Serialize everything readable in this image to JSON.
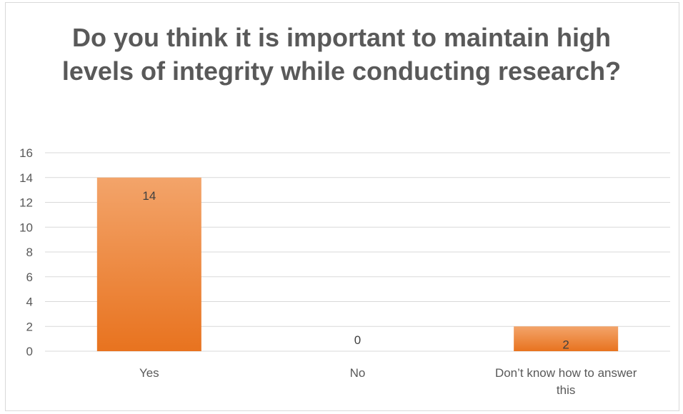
{
  "chart_data": {
    "type": "bar",
    "title": "Do you think it is important to maintain high levels of integrity while conducting research?",
    "categories": [
      "Yes",
      "No",
      "Don’t know how to answer this"
    ],
    "category_label_lines": [
      [
        "Yes"
      ],
      [
        "No"
      ],
      [
        "Don’t know how to answer",
        "this"
      ]
    ],
    "values": [
      14,
      0,
      2
    ],
    "data_labels": [
      "14",
      "0",
      "2"
    ],
    "ylim": [
      0,
      16
    ],
    "yticks": [
      0,
      2,
      4,
      6,
      8,
      10,
      12,
      14,
      16
    ],
    "ytick_labels": [
      "0",
      "2",
      "4",
      "6",
      "8",
      "10",
      "12",
      "14",
      "16"
    ],
    "grid": true,
    "legend": "none",
    "colors": {
      "bar_top": "#f3a46a",
      "bar_bottom": "#e8731f",
      "grid": "#d9d9d9",
      "text": "#595959"
    }
  }
}
